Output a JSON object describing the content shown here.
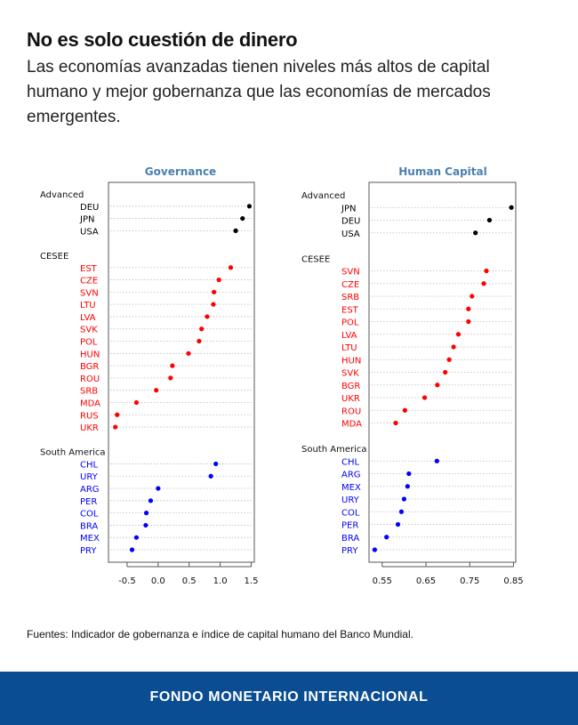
{
  "header": {
    "title": "No es solo cuestión de dinero",
    "subtitle": "Las economías avanzadas tienen niveles más altos de capital humano y mejor gobernanza que las economías de mercados emergentes."
  },
  "source": "Fuentes: Indicador de gobernanza e índice de capital humano del Banco Mundial.",
  "footer": {
    "label": "FONDO MONETARIO INTERNACIONAL"
  },
  "colors": {
    "Advanced": "#000000",
    "CESEE": "#ff0000",
    "South America": "#0000ff",
    "title": "#4a7fb0",
    "footer": "#0b4d92"
  },
  "chart_data": [
    {
      "type": "scatter",
      "title": "Governance",
      "xlim": [
        -0.8,
        1.55
      ],
      "xticks": [
        "-0.5",
        "0.0",
        "0.5",
        "1.0",
        "1.5"
      ],
      "xtick_values": [
        -0.5,
        0,
        0.5,
        1.0,
        1.5
      ],
      "groups": [
        {
          "name": "Advanced",
          "labels": [
            "DEU",
            "JPN",
            "USA"
          ],
          "values": [
            1.47,
            1.36,
            1.25
          ]
        },
        {
          "name": "CESEE",
          "labels": [
            "EST",
            "CZE",
            "SVN",
            "LTU",
            "LVA",
            "SVK",
            "POL",
            "HUN",
            "BGR",
            "ROU",
            "SRB",
            "MDA",
            "RUS",
            "UKR"
          ],
          "values": [
            1.17,
            0.98,
            0.9,
            0.89,
            0.79,
            0.7,
            0.66,
            0.49,
            0.23,
            0.2,
            -0.03,
            -0.35,
            -0.66,
            -0.69
          ]
        },
        {
          "name": "South America",
          "labels": [
            "CHL",
            "URY",
            "ARG",
            "PER",
            "COL",
            "BRA",
            "MEX",
            "PRY"
          ],
          "values": [
            0.93,
            0.85,
            0.0,
            -0.12,
            -0.19,
            -0.2,
            -0.35,
            -0.42
          ]
        }
      ]
    },
    {
      "type": "scatter",
      "title": "Human Capital",
      "xlim": [
        0.52,
        0.855
      ],
      "xticks": [
        "0.55",
        "0.65",
        "0.75",
        "0.85"
      ],
      "xtick_values": [
        0.55,
        0.65,
        0.75,
        0.85
      ],
      "groups": [
        {
          "name": "Advanced",
          "labels": [
            "JPN",
            "DEU",
            "USA"
          ],
          "values": [
            0.845,
            0.795,
            0.763
          ]
        },
        {
          "name": "CESEE",
          "labels": [
            "SVN",
            "CZE",
            "SRB",
            "EST",
            "POL",
            "LVA",
            "LTU",
            "HUN",
            "SVK",
            "BGR",
            "UKR",
            "ROU",
            "MDA"
          ],
          "values": [
            0.788,
            0.782,
            0.755,
            0.747,
            0.747,
            0.724,
            0.713,
            0.703,
            0.694,
            0.676,
            0.647,
            0.602,
            0.581
          ]
        },
        {
          "name": "South America",
          "labels": [
            "CHL",
            "ARG",
            "MEX",
            "URY",
            "COL",
            "PER",
            "BRA",
            "PRY"
          ],
          "values": [
            0.675,
            0.611,
            0.608,
            0.6,
            0.594,
            0.586,
            0.56,
            0.533
          ]
        }
      ]
    }
  ]
}
